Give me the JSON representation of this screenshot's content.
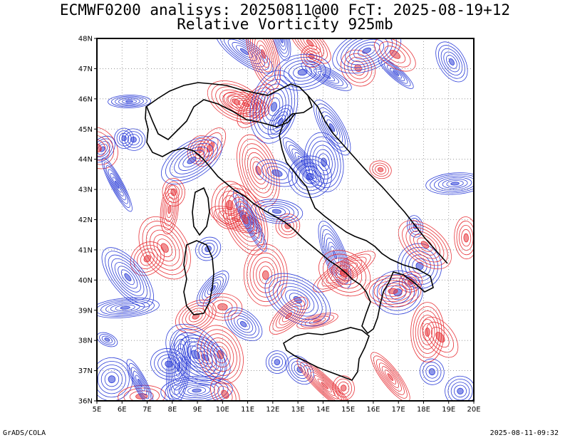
{
  "title": {
    "line1": "ECMWF0200 analisys: 20250811@00 FcT: 2025-08-19+12",
    "line2": "Relative Vorticity 925mb"
  },
  "map": {
    "lon_range": [
      5,
      20
    ],
    "lat_range": [
      36,
      48
    ],
    "lon_ticks": [
      "5E",
      "6E",
      "7E",
      "8E",
      "9E",
      "10E",
      "11E",
      "12E",
      "13E",
      "14E",
      "15E",
      "16E",
      "17E",
      "18E",
      "19E",
      "20E"
    ],
    "lat_ticks": [
      "36N",
      "37N",
      "38N",
      "39N",
      "40N",
      "41N",
      "42N",
      "43N",
      "44N",
      "45N",
      "46N",
      "47N",
      "48N"
    ],
    "grid": "dotted",
    "colors": {
      "positive_contours": "#e8343a",
      "negative_contours": "#2e3fd8",
      "grid": "#888888",
      "coastline": "#000000",
      "frame": "#000000"
    }
  },
  "footer": {
    "left": "GrADS/COLA",
    "right": "2025-08-11-09:32"
  }
}
